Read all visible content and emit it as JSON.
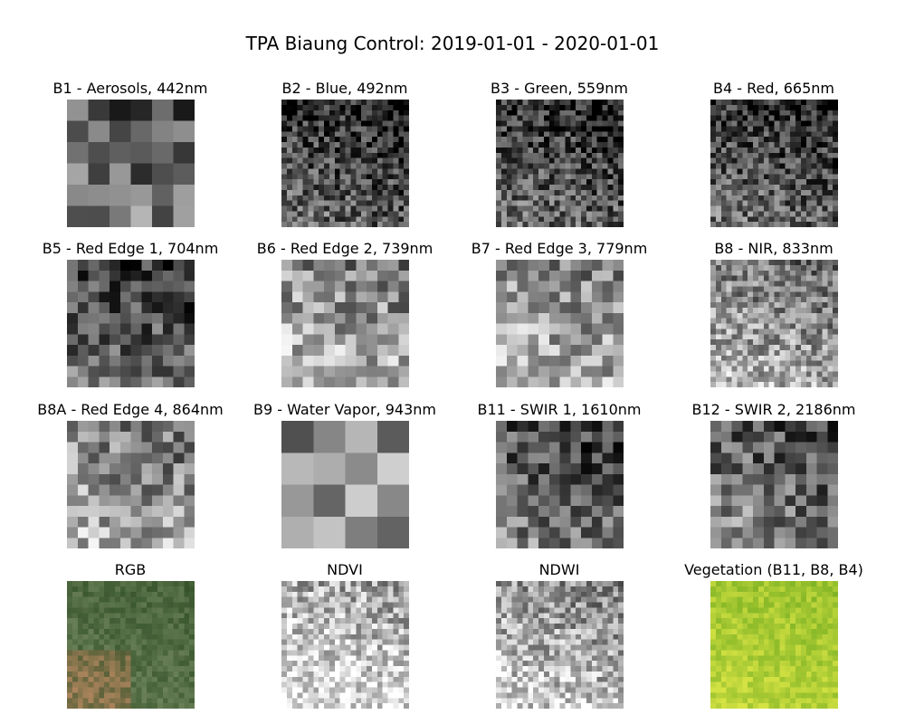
{
  "figure_title": "TPA Biaung Control: 2019-01-01 - 2020-01-01",
  "panels": [
    {
      "title": "B1 - Aerosols, 442nm",
      "grid": 6,
      "kind": "gray",
      "seed": 11,
      "bias": 0.35
    },
    {
      "title": "B2 - Blue, 492nm",
      "grid": 24,
      "kind": "gray",
      "seed": 2,
      "bias": 0.2
    },
    {
      "title": "B3 - Green, 559nm",
      "grid": 24,
      "kind": "gray",
      "seed": 3,
      "bias": 0.22
    },
    {
      "title": "B4 - Red, 665nm",
      "grid": 24,
      "kind": "gray",
      "seed": 4,
      "bias": 0.22
    },
    {
      "title": "B5 - Red Edge 1, 704nm",
      "grid": 12,
      "kind": "gray",
      "seed": 5,
      "bias": 0.25
    },
    {
      "title": "B6 - Red Edge 2, 739nm",
      "grid": 12,
      "kind": "gray",
      "seed": 6,
      "bias": 0.55
    },
    {
      "title": "B7 - Red Edge 3, 779nm",
      "grid": 12,
      "kind": "gray",
      "seed": 7,
      "bias": 0.55
    },
    {
      "title": "B8 - NIR, 833nm",
      "grid": 24,
      "kind": "gray",
      "seed": 8,
      "bias": 0.5
    },
    {
      "title": "B8A - Red Edge 4, 864nm",
      "grid": 12,
      "kind": "gray",
      "seed": 9,
      "bias": 0.5
    },
    {
      "title": "B9 - Water Vapor, 943nm",
      "grid": 4,
      "kind": "gray",
      "seed": 10,
      "bias": 0.55
    },
    {
      "title": "B11 - SWIR 1, 1610nm",
      "grid": 12,
      "kind": "gray",
      "seed": 12,
      "bias": 0.3
    },
    {
      "title": "B12 - SWIR 2, 2186nm",
      "grid": 12,
      "kind": "gray",
      "seed": 13,
      "bias": 0.35
    },
    {
      "title": "RGB",
      "grid": 24,
      "kind": "rgb",
      "seed": 14,
      "bias": 0.4
    },
    {
      "title": "NDVI",
      "grid": 24,
      "kind": "gray",
      "seed": 15,
      "bias": 0.7
    },
    {
      "title": "NDWI",
      "grid": 24,
      "kind": "gray",
      "seed": 16,
      "bias": 0.6
    },
    {
      "title": "Vegetation (B11, B8, B4)",
      "grid": 24,
      "kind": "veg",
      "seed": 17,
      "bias": 0.5
    }
  ]
}
